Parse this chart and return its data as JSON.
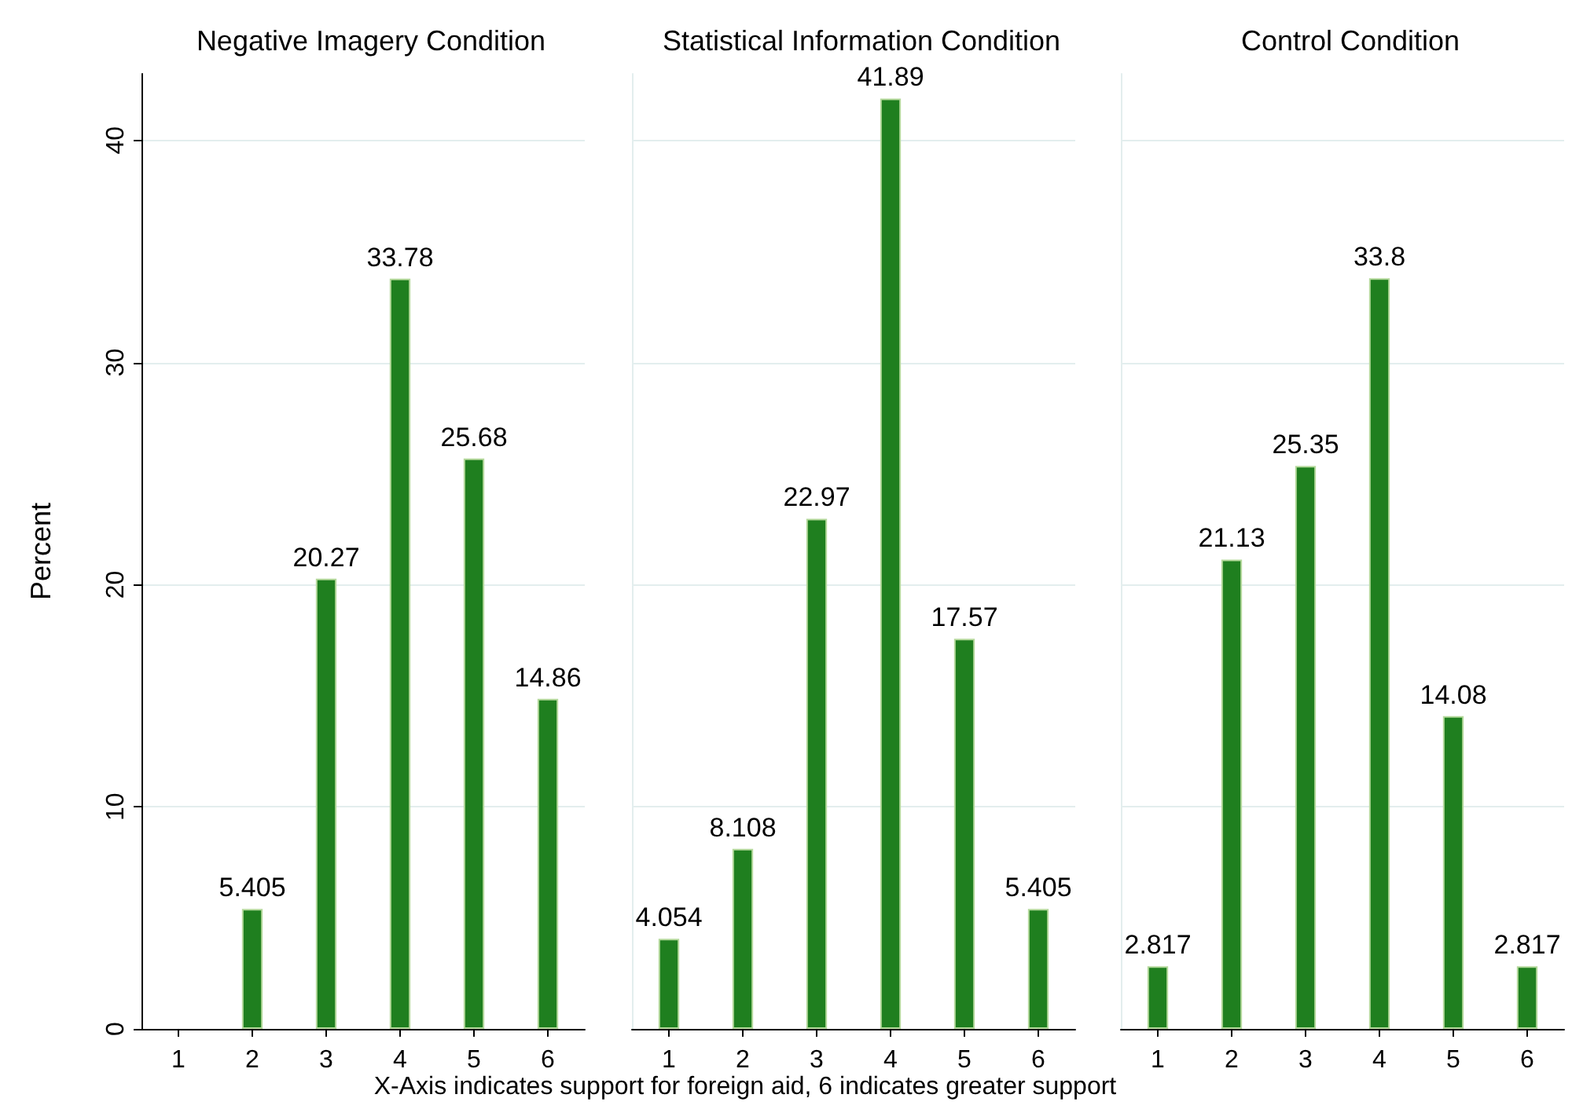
{
  "chart_data": [
    {
      "type": "bar",
      "title": "Negative Imagery Condition",
      "ylabel": "Percent",
      "categories": [
        "1",
        "2",
        "3",
        "4",
        "5",
        "6"
      ],
      "values": [
        null,
        5.405,
        20.27,
        33.78,
        25.68,
        14.86
      ],
      "color": "#1f7f1f",
      "ylim": [
        0,
        43
      ],
      "yticks": [
        0,
        10,
        20,
        30,
        40
      ],
      "grid": "y",
      "data_labels": true
    },
    {
      "type": "bar",
      "title": "Statistical Information Condition",
      "xlabel": "X-Axis indicates support for foreign aid, 6 indicates greater support",
      "categories": [
        "1",
        "2",
        "3",
        "4",
        "5",
        "6"
      ],
      "values": [
        4.054,
        8.108,
        22.97,
        41.89,
        17.57,
        5.405
      ],
      "color": "#1f7f1f",
      "ylim": [
        0,
        43
      ],
      "yticks": [
        0,
        10,
        20,
        30,
        40
      ],
      "grid": "y",
      "data_labels": true,
      "tick_labels": "x"
    },
    {
      "type": "bar",
      "title": "Control Condition",
      "categories": [
        "1",
        "2",
        "3",
        "4",
        "5",
        "6"
      ],
      "values": [
        2.817,
        21.13,
        25.35,
        33.8,
        14.08,
        2.817
      ],
      "color": "#1f7f1f",
      "ylim": [
        0,
        43
      ],
      "yticks": [
        0,
        10,
        20,
        30,
        40
      ],
      "grid": "y",
      "data_labels": true,
      "tick_labels": "x"
    }
  ]
}
